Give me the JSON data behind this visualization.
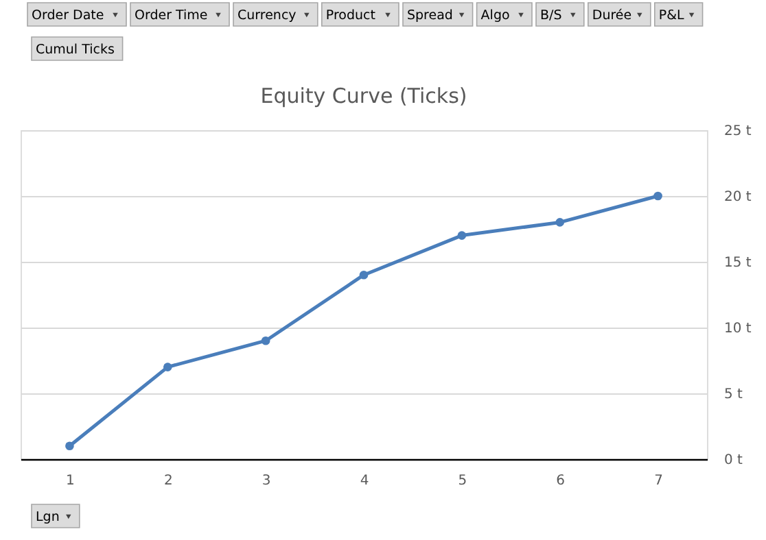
{
  "chart_data": {
    "type": "line",
    "title": "Equity Curve (Ticks)",
    "categories": [
      "1",
      "2",
      "3",
      "4",
      "5",
      "6",
      "7"
    ],
    "series": [
      {
        "color": "#4a7ebb",
        "values": [
          1,
          7,
          9,
          14,
          17,
          18,
          20
        ]
      }
    ],
    "ylim": [
      0,
      25
    ],
    "yticks": [
      {
        "value": 0,
        "label": "0 t"
      },
      {
        "value": 5,
        "label": "5 t"
      },
      {
        "value": 10,
        "label": "10 t"
      },
      {
        "value": 15,
        "label": "15 t"
      },
      {
        "value": 20,
        "label": "20 t"
      },
      {
        "value": 25,
        "label": "25 t"
      }
    ],
    "grid": "y",
    "marker": "circle",
    "line_style": "solid",
    "annotations": [
      "Order Date",
      "Order Time",
      "Currency",
      "Product",
      "Spread",
      "Algo",
      "B/S",
      "Durée",
      "P&L",
      "Cumul Ticks",
      "Lgn"
    ]
  }
}
